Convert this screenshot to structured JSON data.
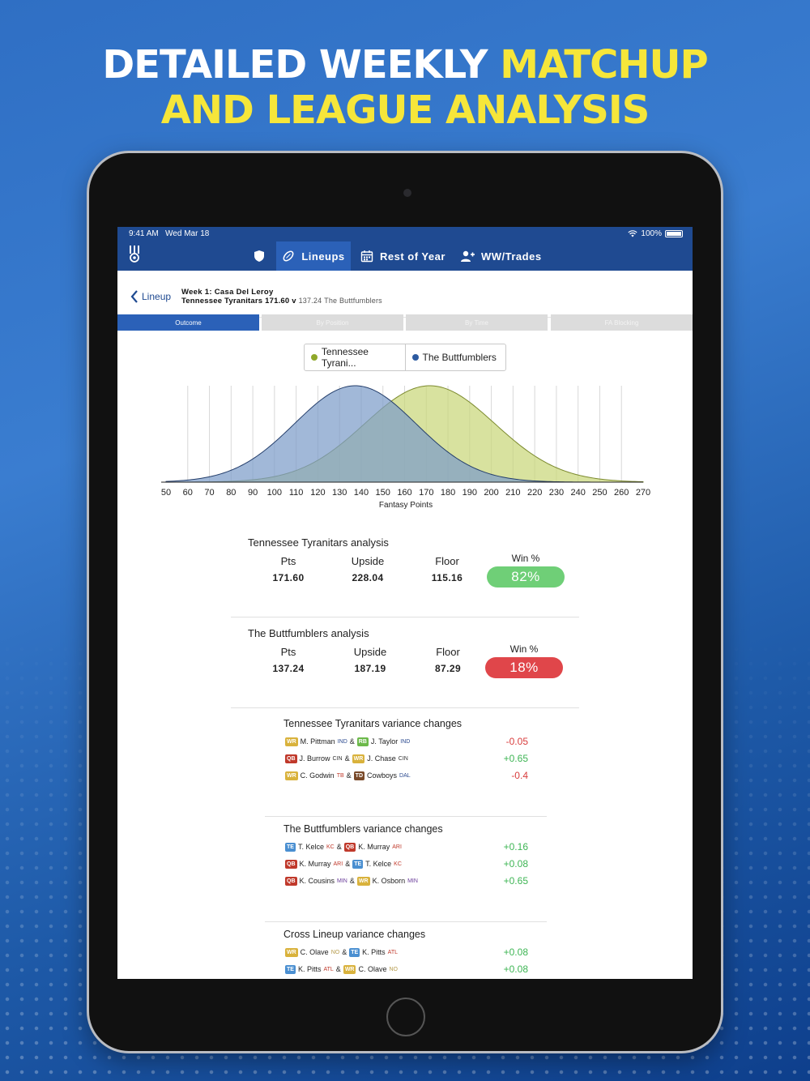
{
  "headline": {
    "line1_white": "DETAILED WEEKLY ",
    "line1_yellow": "MATCHUP",
    "line2_yellow": "AND LEAGUE ANALYSIS"
  },
  "status": {
    "time": "9:41 AM",
    "date": "Wed Mar 18",
    "battery": "100%"
  },
  "nav": {
    "tabs": [
      {
        "label": "",
        "icon": "shield-icon"
      },
      {
        "label": "Lineups",
        "icon": "football-icon",
        "active": true
      },
      {
        "label": "Rest of Year",
        "icon": "calendar-icon"
      },
      {
        "label": "WW/Trades",
        "icon": "add-user-icon"
      }
    ]
  },
  "header": {
    "back_label": "Lineup",
    "week": "Week 1: Casa Del Leroy",
    "team1": "Tennessee Tyranitars",
    "score1": "171.60",
    "vs": "v",
    "score2": "137.24",
    "team2": "The Buttfumblers"
  },
  "segments": [
    "Outcome",
    "By Position",
    "By Time",
    "FA Blocking"
  ],
  "legend": [
    {
      "label": "Tennessee Tyrani...",
      "color": "#8fa82a"
    },
    {
      "label": "The Buttfumblers",
      "color": "#2c5aa0"
    }
  ],
  "chart_data": {
    "type": "area",
    "xlabel": "Fantasy Points",
    "xlim": [
      50,
      270
    ],
    "x_ticks": [
      "50",
      "60",
      "70",
      "80",
      "90",
      "100",
      "110",
      "120",
      "130",
      "140",
      "150",
      "160",
      "170",
      "180",
      "190",
      "200",
      "210",
      "220",
      "230",
      "240",
      "250",
      "260",
      "270"
    ],
    "series": [
      {
        "name": "Tennessee Tyranitars",
        "mean": 171.6,
        "sd": 30,
        "color": "#c9d77a"
      },
      {
        "name": "The Buttfumblers",
        "mean": 137.24,
        "sd": 28,
        "color": "#7d9dc9"
      }
    ]
  },
  "analysis": [
    {
      "title": "Tennessee Tyranitars analysis",
      "pts_label": "Pts",
      "pts": "171.60",
      "upside_label": "Upside",
      "upside": "228.04",
      "floor_label": "Floor",
      "floor": "115.16",
      "win_label": "Win %",
      "win": "82%",
      "win_color": "#6fcf77"
    },
    {
      "title": "The Buttfumblers analysis",
      "pts_label": "Pts",
      "pts": "137.24",
      "upside_label": "Upside",
      "upside": "187.19",
      "floor_label": "Floor",
      "floor": "87.29",
      "win_label": "Win %",
      "win": "18%",
      "win_color": "#e0464a"
    }
  ],
  "variance": [
    {
      "title": "Tennessee Tyranitars variance changes",
      "rows": [
        {
          "p1": "WR",
          "n1": "M. Pittman",
          "t1": "IND",
          "p2": "RB",
          "n2": "J. Taylor",
          "t2": "IND",
          "value": "-0.05"
        },
        {
          "p1": "QB",
          "n1": "J. Burrow",
          "t1": "CIN",
          "p2": "WR",
          "n2": "J. Chase",
          "t2": "CIN",
          "value": "+0.65"
        },
        {
          "p1": "WR",
          "n1": "C. Godwin",
          "t1": "TB",
          "p2": "TD",
          "n2": "Cowboys",
          "t2": "DAL",
          "value": "-0.4"
        }
      ]
    },
    {
      "title": "The Buttfumblers variance changes",
      "rows": [
        {
          "p1": "TE",
          "n1": "T. Kelce",
          "t1": "KC",
          "p2": "QB",
          "n2": "K. Murray",
          "t2": "ARI",
          "value": "+0.16"
        },
        {
          "p1": "QB",
          "n1": "K. Murray",
          "t1": "ARI",
          "p2": "TE",
          "n2": "T. Kelce",
          "t2": "KC",
          "value": "+0.08"
        },
        {
          "p1": "QB",
          "n1": "K. Cousins",
          "t1": "MIN",
          "p2": "WR",
          "n2": "K. Osborn",
          "t2": "MIN",
          "value": "+0.65"
        }
      ]
    },
    {
      "title": "Cross Lineup variance changes",
      "rows": [
        {
          "p1": "WR",
          "n1": "C. Olave",
          "t1": "NO",
          "p2": "TE",
          "n2": "K. Pitts",
          "t2": "ATL",
          "value": "+0.08"
        },
        {
          "p1": "TE",
          "n1": "K. Pitts",
          "t1": "ATL",
          "p2": "WR",
          "n2": "C. Olave",
          "t2": "NO",
          "value": "+0.08"
        }
      ]
    }
  ],
  "colors": {
    "WR": "#d9b23c",
    "RB": "#6cb94a",
    "QB": "#c0392b",
    "TE": "#4a8fd1",
    "TD": "#7a4a2a"
  }
}
